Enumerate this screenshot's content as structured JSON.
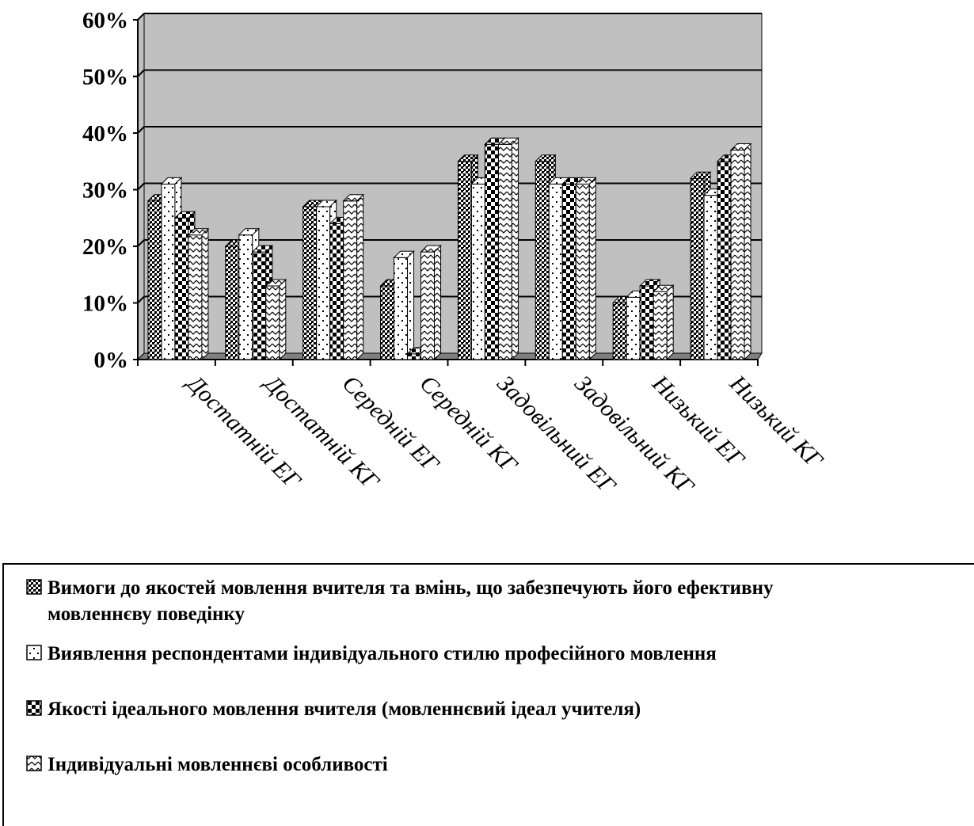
{
  "chart_data": {
    "type": "bar",
    "ylim": [
      0,
      60
    ],
    "y_ticks": [
      "0%",
      "10%",
      "20%",
      "30%",
      "40%",
      "50%",
      "60%"
    ],
    "categories": [
      "Достатній ЕГ",
      "Достатній КГ",
      "Середній ЕГ",
      "Середній КГ",
      "Задовільний ЕГ",
      "Задовільний КГ",
      "Низький ЕГ",
      "Низький КГ"
    ],
    "series": [
      {
        "name": "Вимоги до якостей мовлення вчителя та вмінь, що забезпечують його ефективну мовленнєву поведінку",
        "values": [
          28,
          20,
          27,
          13,
          35,
          35,
          10,
          32
        ],
        "pattern": "dense-dots"
      },
      {
        "name": "Виявлення респондентами індивідуального стилю професійного мовлення",
        "values": [
          31,
          22,
          27,
          18,
          31,
          31,
          11,
          29
        ],
        "pattern": "sparse-dots"
      },
      {
        "name": "Якості ідеального мовлення вчителя (мовленнєвий ідеал учителя)",
        "values": [
          25,
          19,
          24,
          1,
          38,
          31,
          13,
          35
        ],
        "pattern": "checker"
      },
      {
        "name": "Індивідуальні мовленнєві особливості",
        "values": [
          22,
          13,
          28,
          19,
          38,
          31,
          12,
          37
        ],
        "pattern": "zigzag"
      }
    ],
    "grid": true,
    "legend_position": "bottom",
    "colors": {
      "wall": "#c0c0c0",
      "floor": "#808080",
      "bar_dark": "#000000",
      "bar_light": "#ffffff"
    }
  }
}
